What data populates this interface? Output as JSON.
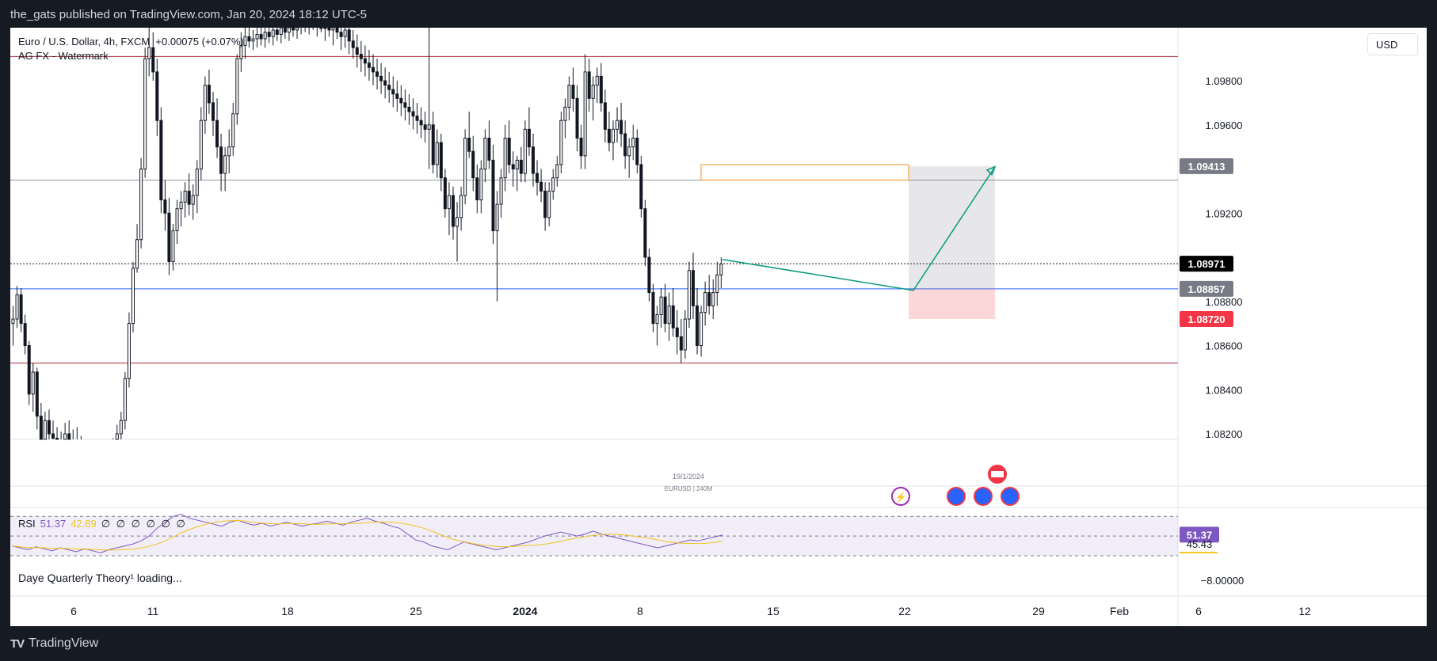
{
  "header": {
    "publisher": "the_gats published on TradingView.com, Jan 20, 2024 18:12 UTC-5"
  },
  "legend": {
    "symbol_line": "Euro / U.S. Dollar, 4h, FXCM",
    "change": "+0.00075 (+0.07%)",
    "watermark_label": "AG FX - Watermark"
  },
  "currency_button": "USD",
  "rsi": {
    "label": "RSI",
    "value": "51.37",
    "ma_value": "42.89",
    "placeholders": "∅ ∅ ∅ ∅ ∅ ∅",
    "value_badge": "51.37",
    "ma_badge": "45.43"
  },
  "indicator_loading": "Daye Quarterly Theory¹ loading...",
  "oscillator_axis_label": "−8.00000",
  "chart_data": {
    "type": "candlestick",
    "symbol": "EURUSD",
    "timeframe": "240M",
    "watermark_date": "19/1/2024",
    "watermark_symbol": "EURUSD | 240M",
    "y_axis": {
      "ticks": [
        "1.09800",
        "1.09600",
        "1.09200",
        "1.08800",
        "1.08600",
        "1.08400",
        "1.08200"
      ],
      "tick_values": [
        1.098,
        1.096,
        1.092,
        1.088,
        1.086,
        1.084,
        1.082
      ],
      "range": [
        1.0813,
        1.1
      ]
    },
    "x_axis": {
      "ticks": [
        "6",
        "11",
        "18",
        "25",
        "2024",
        "8",
        "15",
        "22",
        "29",
        "Feb",
        "6",
        "12"
      ]
    },
    "price_badges": [
      {
        "label": "1.09413",
        "value": 1.09413,
        "color": "#787b86"
      },
      {
        "label": "1.08971",
        "value": 1.08971,
        "color": "#000000"
      },
      {
        "label": "1.08857",
        "value": 1.08857,
        "color": "#787b86"
      },
      {
        "label": "1.08720",
        "value": 1.0872,
        "color": "#f23645"
      }
    ],
    "horizontal_lines": [
      {
        "value": 1.0991,
        "color": "#b22833"
      },
      {
        "value": 1.0935,
        "color": "#9598a1"
      },
      {
        "value": 1.08971,
        "color": "#131722",
        "style": "dotted"
      },
      {
        "value": 1.08857,
        "color": "#2962ff"
      },
      {
        "value": 1.0852,
        "color": "#b22833"
      }
    ],
    "zone": {
      "top": 1.0942,
      "bottom": 1.0935,
      "color": "#f7931a"
    },
    "position": {
      "entry": 1.08857,
      "target": 1.09413,
      "stop": 1.0872
    },
    "projection": [
      [
        1.0899,
        1.0885
      ],
      [
        1.0941
      ]
    ],
    "candles": [
      [
        1.087,
        1.0878,
        1.086,
        1.0872
      ],
      [
        1.0872,
        1.0887,
        1.0868,
        1.0883
      ],
      [
        1.0883,
        1.0886,
        1.0866,
        1.087
      ],
      [
        1.087,
        1.0874,
        1.0856,
        1.086
      ],
      [
        1.086,
        1.0862,
        1.0833,
        1.0838
      ],
      [
        1.0838,
        1.0852,
        1.083,
        1.0848
      ],
      [
        1.0848,
        1.085,
        1.0822,
        1.0828
      ],
      [
        1.0828,
        1.0834,
        1.0805,
        1.0812
      ],
      [
        1.0812,
        1.083,
        1.0808,
        1.0826
      ],
      [
        1.0826,
        1.0831,
        1.0816,
        1.082
      ],
      [
        1.082,
        1.0826,
        1.0815,
        1.0818
      ],
      [
        1.0818,
        1.0823,
        1.0812,
        1.0816
      ],
      [
        1.0816,
        1.0821,
        1.0808,
        1.0814
      ],
      [
        1.0814,
        1.0825,
        1.081,
        1.082
      ],
      [
        1.082,
        1.0826,
        1.0811,
        1.0815
      ],
      [
        1.0815,
        1.0822,
        1.0809,
        1.0817
      ],
      [
        1.0817,
        1.0823,
        1.0812,
        1.0815
      ],
      [
        1.0815,
        1.0819,
        1.0805,
        1.0809
      ],
      [
        1.0809,
        1.0814,
        1.0801,
        1.0806
      ],
      [
        1.0806,
        1.0812,
        1.08,
        1.0808
      ],
      [
        1.0808,
        1.0815,
        1.0803,
        1.081
      ],
      [
        1.081,
        1.0816,
        1.0805,
        1.0807
      ],
      [
        1.0807,
        1.0812,
        1.0801,
        1.0805
      ],
      [
        1.0805,
        1.0811,
        1.08,
        1.0808
      ],
      [
        1.0808,
        1.0815,
        1.0804,
        1.0812
      ],
      [
        1.0812,
        1.0818,
        1.0806,
        1.081
      ],
      [
        1.081,
        1.0824,
        1.0805,
        1.082
      ],
      [
        1.082,
        1.083,
        1.0816,
        1.0826
      ],
      [
        1.0826,
        1.0848,
        1.0822,
        1.0845
      ],
      [
        1.0845,
        1.0875,
        1.0841,
        1.087
      ],
      [
        1.087,
        1.0898,
        1.0866,
        1.0895
      ],
      [
        1.0895,
        1.0915,
        1.0893,
        1.0908
      ],
      [
        1.0908,
        1.0945,
        1.0904,
        1.094
      ],
      [
        1.094,
        1.0995,
        1.0936,
        1.099
      ],
      [
        1.099,
        1.1005,
        1.0982,
        1.0995
      ],
      [
        1.0995,
        1.1002,
        1.098,
        1.0984
      ],
      [
        1.0984,
        1.099,
        1.0955,
        1.0962
      ],
      [
        1.0962,
        1.0968,
        1.092,
        1.0926
      ],
      [
        1.0926,
        1.0935,
        1.0912,
        1.092
      ],
      [
        1.092,
        1.0927,
        1.0892,
        1.0898
      ],
      [
        1.0898,
        1.0915,
        1.0894,
        1.0912
      ],
      [
        1.0912,
        1.0926,
        1.0906,
        1.0922
      ],
      [
        1.0922,
        1.093,
        1.0914,
        1.0925
      ],
      [
        1.0925,
        1.0934,
        1.0918,
        1.093
      ],
      [
        1.093,
        1.0938,
        1.0919,
        1.0924
      ],
      [
        1.0924,
        1.0933,
        1.0917,
        1.0928
      ],
      [
        1.0928,
        1.0944,
        1.092,
        1.094
      ],
      [
        1.094,
        1.0968,
        1.0935,
        1.0962
      ],
      [
        1.0962,
        1.0982,
        1.0956,
        1.0978
      ],
      [
        1.0978,
        1.0985,
        1.0965,
        1.097
      ],
      [
        1.097,
        1.0975,
        1.0955,
        1.0962
      ],
      [
        1.0962,
        1.0972,
        1.0945,
        1.095
      ],
      [
        1.095,
        1.0956,
        1.093,
        1.0938
      ],
      [
        1.0938,
        1.095,
        1.093,
        1.0946
      ],
      [
        1.0946,
        1.0958,
        1.0938,
        1.095
      ],
      [
        1.095,
        1.097,
        1.0946,
        1.0965
      ],
      [
        1.0965,
        1.0992,
        1.096,
        1.099
      ],
      [
        1.099,
        1.1002,
        1.0984,
        1.0996
      ],
      [
        1.0996,
        1.1005,
        1.099,
        1.1
      ],
      [
        1.1,
        1.1004,
        1.0995,
        1.0998
      ],
      [
        1.0998,
        1.1003,
        1.0994,
        1.0999
      ],
      [
        1.0999,
        1.1004,
        1.0995,
        1.1001
      ],
      [
        1.1001,
        1.1005,
        1.0996,
        1.0999
      ],
      [
        1.0999,
        1.1004,
        1.0995,
        1.1002
      ],
      [
        1.1002,
        1.1006,
        1.0997,
        1.1
      ],
      [
        1.1,
        1.1005,
        1.0996,
        1.1003
      ],
      [
        1.1003,
        1.1006,
        1.0998,
        1.1001
      ],
      [
        1.1001,
        1.1005,
        1.0997,
        1.1004
      ],
      [
        1.1004,
        1.1008,
        1.0999,
        1.1002
      ],
      [
        1.1002,
        1.1006,
        1.0998,
        1.1005
      ],
      [
        1.1005,
        1.101,
        1.1,
        1.1003
      ],
      [
        1.1003,
        1.1007,
        1.0999,
        1.1006
      ],
      [
        1.1006,
        1.1015,
        1.1001,
        1.101
      ],
      [
        1.101,
        1.1014,
        1.1002,
        1.1006
      ],
      [
        1.1006,
        1.1011,
        1.1001,
        1.1008
      ],
      [
        1.1008,
        1.1012,
        1.1003,
        1.1005
      ],
      [
        1.1005,
        1.101,
        1.1,
        1.1009
      ],
      [
        1.1009,
        1.1013,
        1.1002,
        1.1004
      ],
      [
        1.1004,
        1.1009,
        1.0998,
        1.1007
      ],
      [
        1.1007,
        1.1011,
        1.1,
        1.1003
      ],
      [
        1.1003,
        1.1008,
        1.0996,
        1.1005
      ],
      [
        1.1005,
        1.101,
        1.0999,
        1.1002
      ],
      [
        1.1002,
        1.1006,
        1.0994,
        1.1
      ],
      [
        1.1,
        1.1005,
        1.0995,
        1.1003
      ],
      [
        1.1003,
        1.1008,
        1.0992,
        1.0998
      ],
      [
        1.0998,
        1.1003,
        1.099,
        1.0995
      ],
      [
        1.0995,
        1.1001,
        1.0986,
        1.0992
      ],
      [
        1.0992,
        1.0998,
        1.0984,
        1.099
      ],
      [
        1.099,
        1.0996,
        1.0982,
        1.0988
      ],
      [
        1.0988,
        1.0994,
        1.098,
        1.0986
      ],
      [
        1.0986,
        1.0992,
        1.0978,
        1.0984
      ],
      [
        1.0984,
        1.099,
        1.0976,
        1.0982
      ],
      [
        1.0982,
        1.0988,
        1.0974,
        1.098
      ],
      [
        1.098,
        1.0986,
        1.0972,
        1.0978
      ],
      [
        1.0978,
        1.0984,
        1.097,
        1.0976
      ],
      [
        1.0976,
        1.0982,
        1.0968,
        1.0974
      ],
      [
        1.0974,
        1.098,
        1.0966,
        1.0972
      ],
      [
        1.0972,
        1.0978,
        1.0964,
        1.097
      ],
      [
        1.097,
        1.0976,
        1.0962,
        1.0968
      ],
      [
        1.0968,
        1.0974,
        1.096,
        1.0966
      ],
      [
        1.0966,
        1.0972,
        1.0958,
        1.0964
      ],
      [
        1.0964,
        1.097,
        1.0956,
        1.0962
      ],
      [
        1.0962,
        1.0968,
        1.0954,
        1.096
      ],
      [
        1.096,
        1.0966,
        1.0952,
        1.0958
      ],
      [
        1.0958,
        1.1006,
        1.094,
        1.096
      ],
      [
        1.096,
        1.0966,
        1.0938,
        1.0942
      ],
      [
        1.0942,
        1.0958,
        1.0936,
        1.0952
      ],
      [
        1.0952,
        1.0956,
        1.093,
        1.0936
      ],
      [
        1.0936,
        1.094,
        1.0918,
        1.0922
      ],
      [
        1.0922,
        1.0934,
        1.091,
        1.0928
      ],
      [
        1.0928,
        1.0932,
        1.0908,
        1.0914
      ],
      [
        1.0914,
        1.0925,
        1.0898,
        1.0918
      ],
      [
        1.0918,
        1.0932,
        1.0912,
        1.0928
      ],
      [
        1.0928,
        1.0958,
        1.0924,
        1.0954
      ],
      [
        1.0954,
        1.0966,
        1.0945,
        1.0948
      ],
      [
        1.0948,
        1.0955,
        1.093,
        1.0936
      ],
      [
        1.0936,
        1.0942,
        1.092,
        1.0926
      ],
      [
        1.0926,
        1.0944,
        1.092,
        1.094
      ],
      [
        1.094,
        1.0958,
        1.0934,
        1.0954
      ],
      [
        1.0954,
        1.0962,
        1.094,
        1.0944
      ],
      [
        1.0944,
        1.0951,
        1.0906,
        1.0912
      ],
      [
        1.0912,
        1.093,
        1.088,
        1.0924
      ],
      [
        1.0924,
        1.094,
        1.0918,
        1.0936
      ],
      [
        1.0936,
        1.096,
        1.093,
        1.0954
      ],
      [
        1.0954,
        1.0962,
        1.0938,
        1.0942
      ],
      [
        1.0942,
        1.0948,
        1.0932,
        1.094
      ],
      [
        1.094,
        1.0946,
        1.093,
        1.0944
      ],
      [
        1.0944,
        1.095,
        1.0934,
        1.0938
      ],
      [
        1.0938,
        1.0962,
        1.0934,
        1.0958
      ],
      [
        1.0958,
        1.0968,
        1.0946,
        1.095
      ],
      [
        1.095,
        1.0956,
        1.0932,
        1.0938
      ],
      [
        1.0938,
        1.0944,
        1.0928,
        1.0934
      ],
      [
        1.0934,
        1.094,
        1.0925,
        1.093
      ],
      [
        1.093,
        1.0934,
        1.0912,
        1.0918
      ],
      [
        1.0918,
        1.0934,
        1.0914,
        1.093
      ],
      [
        1.093,
        1.094,
        1.0926,
        1.0936
      ],
      [
        1.0936,
        1.0946,
        1.0932,
        1.0942
      ],
      [
        1.0942,
        1.0966,
        1.0938,
        1.0962
      ],
      [
        1.0962,
        1.0972,
        1.0954,
        1.0968
      ],
      [
        1.0968,
        1.0982,
        1.0962,
        1.0978
      ],
      [
        1.0978,
        1.0986,
        1.0966,
        1.0972
      ],
      [
        1.0972,
        1.0978,
        1.0948,
        1.0954
      ],
      [
        1.0954,
        1.096,
        1.094,
        1.0946
      ],
      [
        1.0946,
        1.0992,
        1.094,
        1.0984
      ],
      [
        1.0984,
        1.099,
        1.0966,
        1.0972
      ],
      [
        1.0972,
        1.0982,
        1.0962,
        1.0978
      ],
      [
        1.0978,
        1.0986,
        1.097,
        1.0982
      ],
      [
        1.0982,
        1.0988,
        1.0966,
        1.097
      ],
      [
        1.097,
        1.0976,
        1.0952,
        1.0958
      ],
      [
        1.0958,
        1.0966,
        1.0948,
        1.0952
      ],
      [
        1.0952,
        1.0962,
        1.0944,
        1.0958
      ],
      [
        1.0958,
        1.0968,
        1.0952,
        1.0962
      ],
      [
        1.0962,
        1.097,
        1.095,
        1.0956
      ],
      [
        1.0956,
        1.0962,
        1.094,
        1.0946
      ],
      [
        1.0946,
        1.0954,
        1.0936,
        1.095
      ],
      [
        1.095,
        1.096,
        1.0944,
        1.0954
      ],
      [
        1.0954,
        1.0958,
        1.0938,
        1.0942
      ],
      [
        1.0942,
        1.0946,
        1.0918,
        1.0922
      ],
      [
        1.0922,
        1.0926,
        1.0896,
        1.09
      ],
      [
        1.09,
        1.0904,
        1.088,
        1.0884
      ],
      [
        1.0884,
        1.0888,
        1.0866,
        1.087
      ],
      [
        1.087,
        1.0878,
        1.086,
        1.0874
      ],
      [
        1.0874,
        1.0886,
        1.0868,
        1.0882
      ],
      [
        1.0882,
        1.0888,
        1.0866,
        1.087
      ],
      [
        1.087,
        1.0884,
        1.0862,
        1.0878
      ],
      [
        1.0878,
        1.0886,
        1.0864,
        1.0868
      ],
      [
        1.0868,
        1.0876,
        1.0856,
        1.0864
      ],
      [
        1.0864,
        1.0872,
        1.0852,
        1.0858
      ],
      [
        1.0858,
        1.0876,
        1.0854,
        1.0872
      ],
      [
        1.0872,
        1.0898,
        1.0868,
        1.0894
      ],
      [
        1.0894,
        1.0902,
        1.0872,
        1.0878
      ],
      [
        1.0878,
        1.0886,
        1.0856,
        1.086
      ],
      [
        1.086,
        1.0878,
        1.0855,
        1.0875
      ],
      [
        1.0875,
        1.0889,
        1.0869,
        1.0884
      ],
      [
        1.0884,
        1.0892,
        1.0874,
        1.0878
      ],
      [
        1.0878,
        1.089,
        1.0872,
        1.0884
      ],
      [
        1.0884,
        1.0898,
        1.0878,
        1.0892
      ],
      [
        1.0892,
        1.09,
        1.0886,
        1.0897
      ]
    ],
    "rsi_values": [
      40,
      38,
      36,
      39,
      37,
      35,
      38,
      36,
      34,
      37,
      35,
      33,
      36,
      38,
      40,
      42,
      45,
      50,
      58,
      64,
      70,
      72,
      68,
      66,
      64,
      62,
      60,
      64,
      66,
      63,
      61,
      63,
      60,
      62,
      64,
      62,
      60,
      62,
      63,
      65,
      63,
      61,
      64,
      66,
      68,
      65,
      63,
      60,
      58,
      52,
      46,
      44,
      40,
      38,
      36,
      40,
      44,
      42,
      40,
      38,
      36,
      38,
      40,
      42,
      44,
      47,
      50,
      52,
      54,
      52,
      50,
      52,
      55,
      52,
      50,
      48,
      46,
      44,
      42,
      40,
      38,
      40,
      42,
      44,
      46,
      45,
      47,
      49,
      51
    ]
  }
}
